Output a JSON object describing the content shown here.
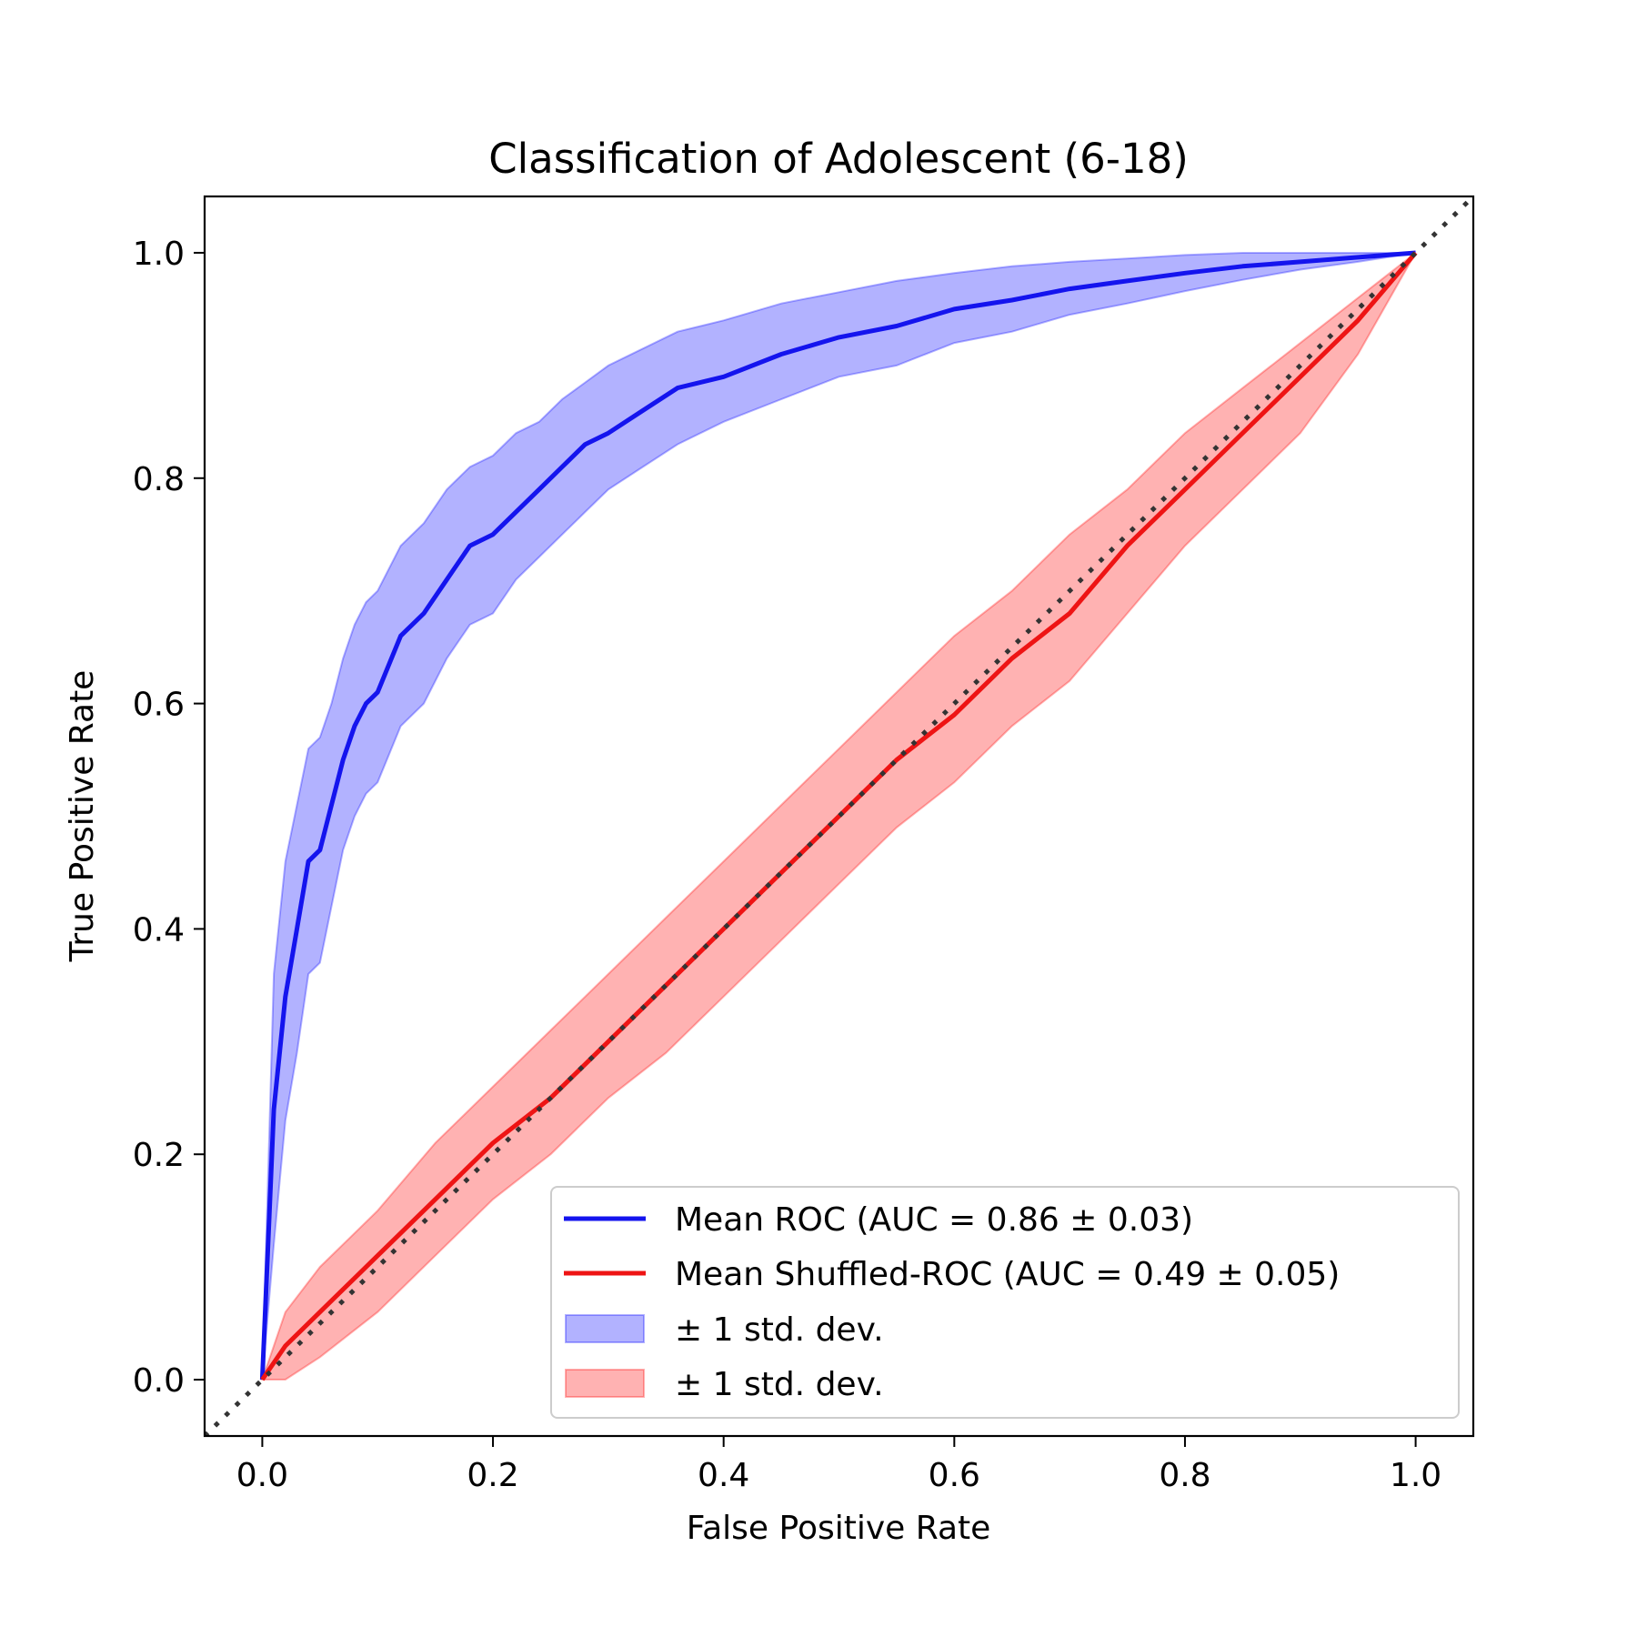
{
  "chart_data": {
    "type": "line",
    "title": "Classification of Adolescent (6-18)",
    "xlabel": "False Positive Rate",
    "ylabel": "True Positive Rate",
    "xlim": [
      -0.05,
      1.05
    ],
    "ylim": [
      -0.05,
      1.05
    ],
    "xticks": [
      "0.0",
      "0.2",
      "0.4",
      "0.6",
      "0.8",
      "1.0"
    ],
    "yticks": [
      "0.0",
      "0.2",
      "0.4",
      "0.6",
      "0.8",
      "1.0"
    ],
    "grid": false,
    "legend_position": "lower-right",
    "chance_line": {
      "x": [
        -0.05,
        1.05
      ],
      "y": [
        -0.05,
        1.05
      ],
      "style": "dotted",
      "color": "#333333"
    },
    "series": [
      {
        "name": "Mean ROC (AUC = 0.86 ± 0.03)",
        "color": "#1414ee",
        "x": [
          0,
          0.01,
          0.02,
          0.03,
          0.04,
          0.05,
          0.06,
          0.07,
          0.08,
          0.09,
          0.1,
          0.12,
          0.14,
          0.16,
          0.18,
          0.2,
          0.22,
          0.24,
          0.26,
          0.28,
          0.3,
          0.33,
          0.36,
          0.4,
          0.45,
          0.5,
          0.55,
          0.6,
          0.65,
          0.7,
          0.75,
          0.8,
          0.85,
          0.9,
          0.95,
          1.0
        ],
        "y": [
          0,
          0.24,
          0.34,
          0.4,
          0.46,
          0.47,
          0.51,
          0.55,
          0.58,
          0.6,
          0.61,
          0.66,
          0.68,
          0.71,
          0.74,
          0.75,
          0.77,
          0.79,
          0.81,
          0.83,
          0.84,
          0.86,
          0.88,
          0.89,
          0.91,
          0.925,
          0.935,
          0.95,
          0.958,
          0.968,
          0.975,
          0.982,
          0.988,
          0.992,
          0.996,
          1.0
        ],
        "upper": [
          0,
          0.36,
          0.46,
          0.51,
          0.56,
          0.57,
          0.6,
          0.64,
          0.67,
          0.69,
          0.7,
          0.74,
          0.76,
          0.79,
          0.81,
          0.82,
          0.84,
          0.85,
          0.87,
          0.885,
          0.9,
          0.915,
          0.93,
          0.94,
          0.955,
          0.965,
          0.975,
          0.982,
          0.988,
          0.992,
          0.995,
          0.998,
          1.0,
          1.0,
          1.0,
          1.0
        ],
        "lower": [
          0,
          0.12,
          0.23,
          0.29,
          0.36,
          0.37,
          0.42,
          0.47,
          0.5,
          0.52,
          0.53,
          0.58,
          0.6,
          0.64,
          0.67,
          0.68,
          0.71,
          0.73,
          0.75,
          0.77,
          0.79,
          0.81,
          0.83,
          0.85,
          0.87,
          0.89,
          0.9,
          0.92,
          0.93,
          0.945,
          0.955,
          0.966,
          0.976,
          0.985,
          0.992,
          1.0
        ],
        "band_label": "± 1 std. dev.",
        "band_color": "#0000ff"
      },
      {
        "name": "Mean Shuffled-ROC (AUC = 0.49 ± 0.05)",
        "color": "#ee1414",
        "x": [
          0,
          0.02,
          0.05,
          0.1,
          0.15,
          0.2,
          0.25,
          0.3,
          0.35,
          0.4,
          0.45,
          0.5,
          0.55,
          0.6,
          0.65,
          0.7,
          0.75,
          0.8,
          0.85,
          0.9,
          0.95,
          1.0
        ],
        "y": [
          0,
          0.03,
          0.06,
          0.11,
          0.16,
          0.21,
          0.25,
          0.3,
          0.35,
          0.4,
          0.45,
          0.5,
          0.55,
          0.59,
          0.64,
          0.68,
          0.74,
          0.79,
          0.84,
          0.89,
          0.94,
          1.0
        ],
        "upper": [
          0,
          0.06,
          0.1,
          0.15,
          0.21,
          0.26,
          0.31,
          0.36,
          0.41,
          0.46,
          0.51,
          0.56,
          0.61,
          0.66,
          0.7,
          0.75,
          0.79,
          0.84,
          0.88,
          0.92,
          0.96,
          1.0
        ],
        "lower": [
          0,
          0.0,
          0.02,
          0.06,
          0.11,
          0.16,
          0.2,
          0.25,
          0.29,
          0.34,
          0.39,
          0.44,
          0.49,
          0.53,
          0.58,
          0.62,
          0.68,
          0.74,
          0.79,
          0.84,
          0.91,
          1.0
        ],
        "band_label": "± 1 std. dev.",
        "band_color": "#ff0000"
      }
    ]
  }
}
